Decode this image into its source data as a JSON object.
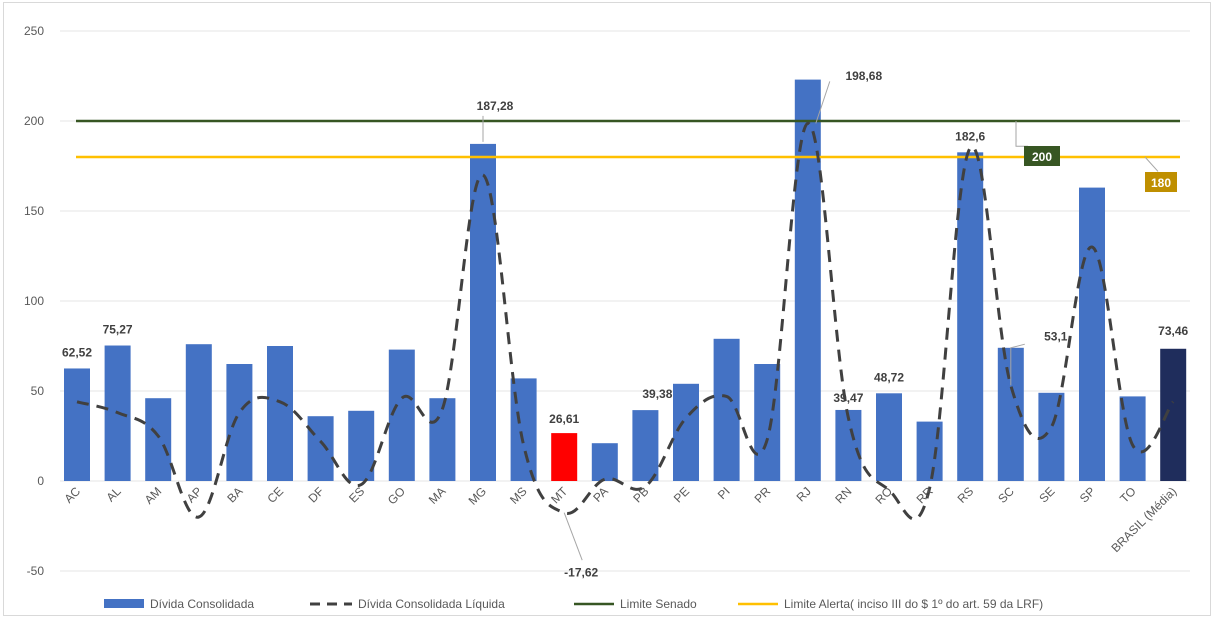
{
  "chart_data": {
    "type": "bar",
    "categories": [
      "AC",
      "AL",
      "AM",
      "AP",
      "BA",
      "CE",
      "DF",
      "ES",
      "GO",
      "MA",
      "MG",
      "MS",
      "MT",
      "PA",
      "PB",
      "PE",
      "PI",
      "PR",
      "RJ",
      "RN",
      "RO",
      "RR",
      "RS",
      "SC",
      "SE",
      "SP",
      "TO",
      "BRASIL (Média)"
    ],
    "series": [
      {
        "name": "Dívida Consolidada",
        "kind": "bar",
        "color": "#4472c4",
        "values": [
          62.52,
          75.27,
          46,
          76,
          65,
          75,
          36,
          39,
          73,
          46,
          187.28,
          57,
          26.61,
          21,
          39.38,
          54,
          79,
          65,
          223,
          39.47,
          48.72,
          33,
          182.6,
          74,
          49,
          163,
          47,
          73.46
        ],
        "highlight": {
          "MT": "#ff0000",
          "BRASIL (Média)": "#1f2d5c"
        }
      },
      {
        "name": "Dívida Consolidada Líquida",
        "kind": "line-dashed",
        "color": "#404040",
        "values": [
          44,
          38,
          25,
          -20,
          38,
          44,
          22,
          -2,
          46,
          40,
          170,
          20,
          -17.62,
          1,
          -3,
          35,
          47,
          23,
          198.68,
          35,
          -5,
          -4,
          185,
          53.1,
          30,
          130,
          20,
          44
        ]
      },
      {
        "name": "Limite Senado",
        "kind": "line",
        "color": "#375623",
        "value": 200
      },
      {
        "name": "Limite Alerta( inciso III do $ 1º do art. 59 da LRF)",
        "kind": "line",
        "color": "#ffc000",
        "value": 180
      }
    ],
    "data_labels": [
      {
        "category": "AC",
        "text": "62,52",
        "series": 0
      },
      {
        "category": "AL",
        "text": "75,27",
        "series": 0
      },
      {
        "category": "MG",
        "text": "187,28",
        "series": 0
      },
      {
        "category": "MT",
        "text": "26,61",
        "series": 0
      },
      {
        "category": "PB",
        "text": "39,38",
        "series": 0
      },
      {
        "category": "RN",
        "text": "39,47",
        "series": 0
      },
      {
        "category": "RO",
        "text": "48,72",
        "series": 0
      },
      {
        "category": "RS",
        "text": "182,6",
        "series": 0
      },
      {
        "category": "BRASIL (Média)",
        "text": "73,46",
        "series": 0
      },
      {
        "category": "RJ",
        "text": "198,68",
        "series": 1
      },
      {
        "category": "SC",
        "text": "53,1",
        "series": 1
      },
      {
        "category": "MT",
        "text": "-17,62",
        "series": 1
      }
    ],
    "limit_labels": [
      {
        "text": "200",
        "bg": "#375623",
        "fg": "#ffffff"
      },
      {
        "text": "180",
        "bg": "#bf8f00",
        "fg": "#ffffff"
      }
    ],
    "ylim": [
      -50,
      250
    ],
    "yticks": [
      -50,
      0,
      50,
      100,
      150,
      200,
      250
    ],
    "grid": true,
    "legend_position": "bottom",
    "title": "",
    "xlabel": "",
    "ylabel": ""
  }
}
